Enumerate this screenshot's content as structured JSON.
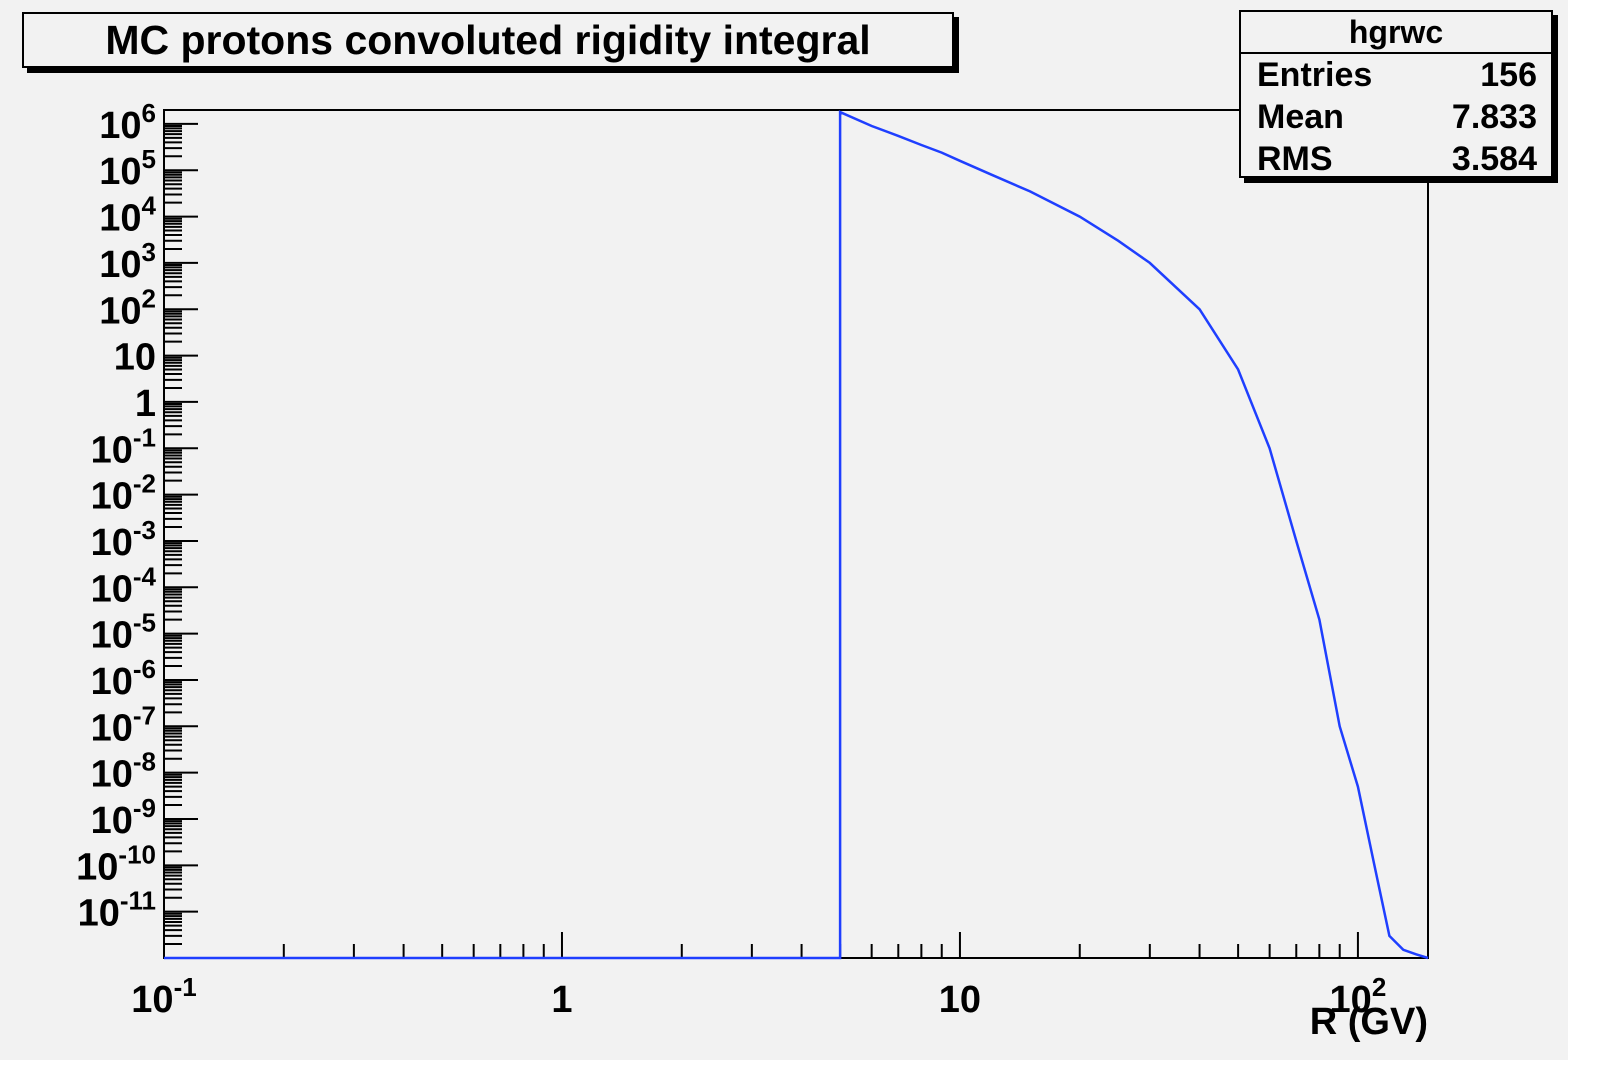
{
  "title": "MC protons convoluted rigidity integral",
  "stats": {
    "name": "hgrwc",
    "rows": [
      {
        "label": "Entries",
        "value": "156"
      },
      {
        "label": "Mean",
        "value": "7.833"
      },
      {
        "label": "RMS",
        "value": "3.584"
      }
    ]
  },
  "colors": {
    "histogram": "#1f3fff",
    "frame": "#000000",
    "background": "#f2f2f2"
  },
  "chart_data": {
    "type": "line",
    "title": "MC protons convoluted rigidity integral",
    "xlabel": "R (GV)",
    "ylabel": "",
    "xscale": "log",
    "yscale": "log",
    "xlim": [
      0.1,
      150
    ],
    "ylim_exponents": [
      -12,
      6.3
    ],
    "grid": false,
    "legend": "none",
    "x_tick_labels": [
      {
        "value": 0.1,
        "base": "10",
        "exp": "-1"
      },
      {
        "value": 1,
        "base": "1",
        "exp": ""
      },
      {
        "value": 10,
        "base": "10",
        "exp": ""
      },
      {
        "value": 100,
        "base": "10",
        "exp": "2"
      }
    ],
    "y_tick_labels": [
      {
        "value": 1000000.0,
        "base": "10",
        "exp": "6"
      },
      {
        "value": 100000.0,
        "base": "10",
        "exp": "5"
      },
      {
        "value": 10000.0,
        "base": "10",
        "exp": "4"
      },
      {
        "value": 1000.0,
        "base": "10",
        "exp": "3"
      },
      {
        "value": 100.0,
        "base": "10",
        "exp": "2"
      },
      {
        "value": 10,
        "base": "10",
        "exp": ""
      },
      {
        "value": 1,
        "base": "1",
        "exp": ""
      },
      {
        "value": 0.1,
        "base": "10",
        "exp": "-1"
      },
      {
        "value": 0.01,
        "base": "10",
        "exp": "-2"
      },
      {
        "value": 0.001,
        "base": "10",
        "exp": "-3"
      },
      {
        "value": 0.0001,
        "base": "10",
        "exp": "-4"
      },
      {
        "value": 1e-05,
        "base": "10",
        "exp": "-5"
      },
      {
        "value": 1e-06,
        "base": "10",
        "exp": "-6"
      },
      {
        "value": 1e-07,
        "base": "10",
        "exp": "-7"
      },
      {
        "value": 1e-08,
        "base": "10",
        "exp": "-8"
      },
      {
        "value": 1e-09,
        "base": "10",
        "exp": "-9"
      },
      {
        "value": 1e-10,
        "base": "10",
        "exp": "-10"
      },
      {
        "value": 1e-11,
        "base": "10",
        "exp": "-11"
      }
    ],
    "series": [
      {
        "drawstyle": "steps",
        "x": [
          0.1,
          5.0,
          5.0,
          6.0,
          7.0,
          8.0,
          9.0,
          10,
          12,
          15,
          20,
          25,
          30,
          40,
          50,
          60,
          70,
          80,
          90,
          100,
          110,
          120,
          130,
          140,
          150
        ],
        "y": [
          1e-12,
          1e-12,
          1800000.0,
          900000.0,
          550000.0,
          350000.0,
          240000.0,
          160000.0,
          80000.0,
          35000.0,
          10000.0,
          3000.0,
          1000.0,
          100.0,
          5.0,
          0.1,
          0.001,
          2e-05,
          1e-07,
          5e-09,
          1e-10,
          3e-12,
          1.5e-12,
          1.2e-12,
          1e-12
        ]
      }
    ]
  }
}
